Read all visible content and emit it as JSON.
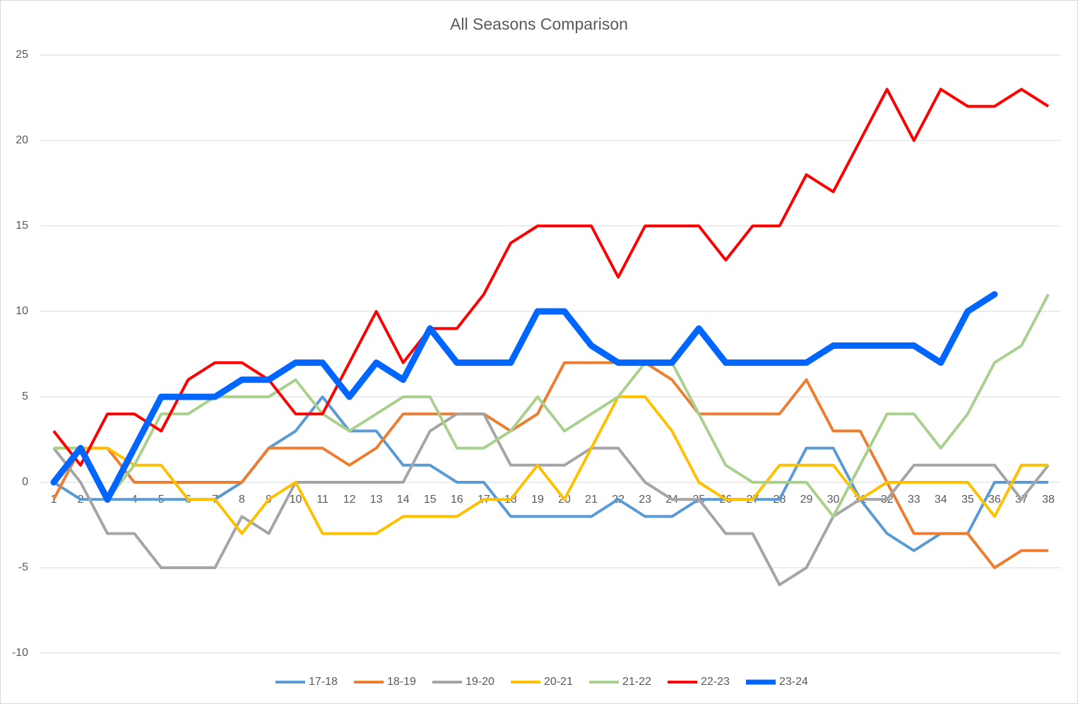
{
  "chart_data": {
    "type": "line",
    "title": "All Seasons Comparison",
    "categories": [
      "1",
      "2",
      "3",
      "4",
      "5",
      "6",
      "7",
      "8",
      "9",
      "10",
      "11",
      "12",
      "13",
      "14",
      "15",
      "16",
      "17",
      "18",
      "19",
      "20",
      "21",
      "22",
      "23",
      "24",
      "25",
      "26",
      "27",
      "28",
      "29",
      "30",
      "31",
      "32",
      "33",
      "34",
      "35",
      "36",
      "37",
      "38"
    ],
    "ylim": [
      -10,
      25
    ],
    "yticks": [
      -10,
      -5,
      0,
      5,
      10,
      15,
      20,
      25
    ],
    "grid": true,
    "legend": "bottom",
    "series": [
      {
        "name": "17-18",
        "color": "#5b9bd5",
        "values": [
          0,
          -1,
          -1,
          -1,
          -1,
          -1,
          -1,
          0,
          2,
          3,
          5,
          3,
          3,
          1,
          1,
          0,
          0,
          -2,
          -2,
          -2,
          -2,
          -1,
          -2,
          -2,
          -1,
          -1,
          -1,
          -1,
          2,
          2,
          -1,
          -3,
          -4,
          -3,
          -3,
          0,
          0,
          0
        ]
      },
      {
        "name": "18-19",
        "color": "#ed7d31",
        "values": [
          -1,
          2,
          2,
          0,
          0,
          0,
          0,
          0,
          2,
          2,
          2,
          1,
          2,
          4,
          4,
          4,
          4,
          3,
          4,
          7,
          7,
          7,
          7,
          6,
          4,
          4,
          4,
          4,
          6,
          3,
          3,
          0,
          -3,
          -3,
          -3,
          -5,
          -4,
          -4
        ]
      },
      {
        "name": "19-20",
        "color": "#a5a5a5",
        "values": [
          2,
          0,
          -3,
          -3,
          -5,
          -5,
          -5,
          -2,
          -3,
          0,
          0,
          0,
          0,
          0,
          3,
          4,
          4,
          1,
          1,
          1,
          2,
          2,
          0,
          -1,
          -1,
          -3,
          -3,
          -6,
          -5,
          -2,
          -1,
          -1,
          1,
          1,
          1,
          1,
          -1,
          1
        ]
      },
      {
        "name": "20-21",
        "color": "#ffc000",
        "values": [
          2,
          2,
          2,
          1,
          1,
          -1,
          -1,
          -3,
          -1,
          0,
          -3,
          -3,
          -3,
          -2,
          -2,
          -2,
          -1,
          -1,
          1,
          -1,
          2,
          5,
          5,
          3,
          0,
          -1,
          -1,
          1,
          1,
          1,
          -1,
          0,
          0,
          0,
          0,
          -2,
          1,
          1
        ]
      },
      {
        "name": "21-22",
        "color": "#a9d18e",
        "values": [
          2,
          2,
          -1,
          1,
          4,
          4,
          5,
          5,
          5,
          6,
          4,
          3,
          4,
          5,
          5,
          2,
          2,
          3,
          5,
          3,
          4,
          5,
          7,
          7,
          4,
          1,
          0,
          0,
          0,
          -2,
          1,
          4,
          4,
          2,
          4,
          7,
          8,
          11
        ]
      },
      {
        "name": "22-23",
        "color": "#ff0000",
        "values": [
          3,
          1,
          4,
          4,
          3,
          6,
          7,
          7,
          6,
          4,
          4,
          7,
          10,
          7,
          9,
          9,
          11,
          14,
          15,
          15,
          15,
          12,
          15,
          15,
          15,
          13,
          15,
          15,
          18,
          17,
          20,
          23,
          20,
          23,
          22,
          22,
          23,
          22
        ]
      },
      {
        "name": "23-24",
        "color": "#0066ff",
        "values": [
          0,
          2,
          -1,
          2,
          5,
          5,
          5,
          6,
          6,
          7,
          7,
          5,
          7,
          6,
          9,
          7,
          7,
          7,
          10,
          10,
          8,
          7,
          7,
          7,
          9,
          7,
          7,
          7,
          7,
          8,
          8,
          8,
          8,
          7,
          10,
          11,
          null,
          null
        ]
      }
    ]
  }
}
